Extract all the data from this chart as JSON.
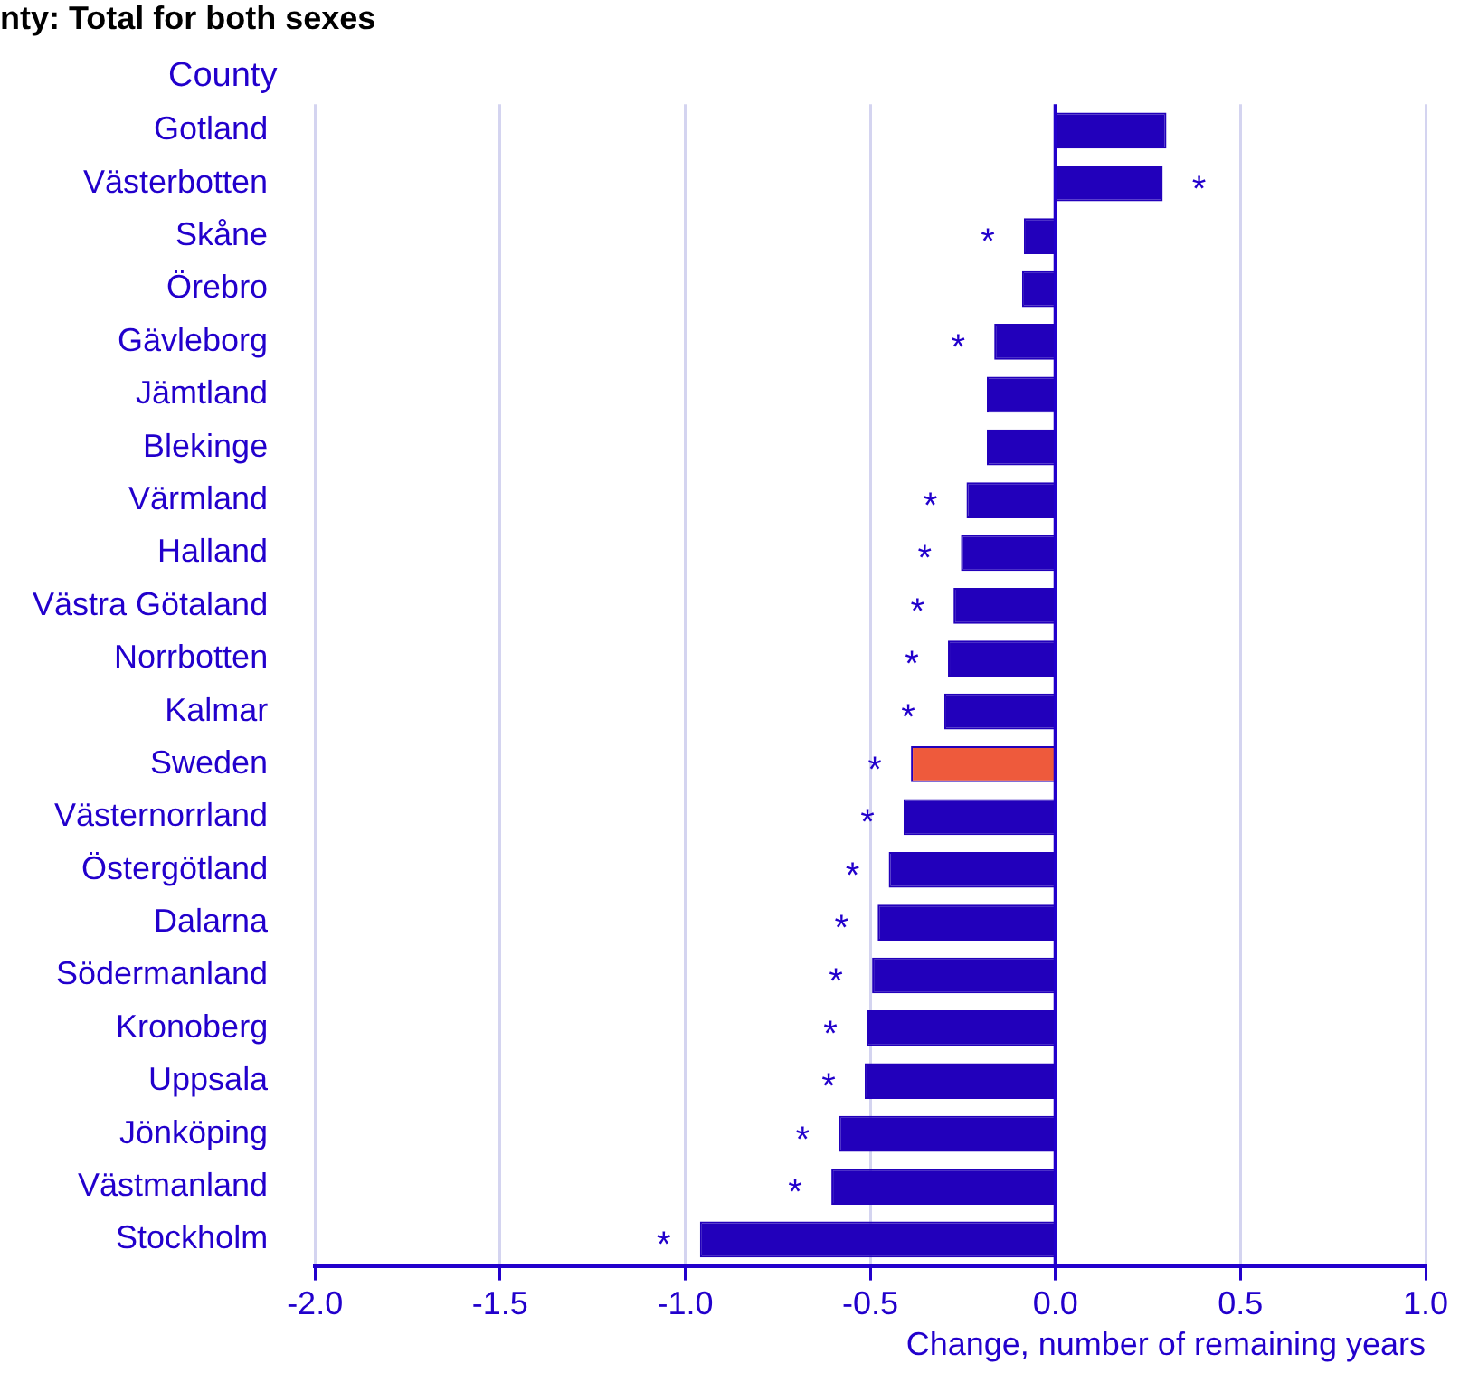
{
  "chart_data": {
    "type": "bar",
    "orientation": "horizontal",
    "title": "nty: Total for both sexes",
    "ylabel": "County",
    "xlabel": "Change, number of remaining years",
    "categories": [
      "Gotland",
      "Västerbotten",
      "Skåne",
      "Örebro",
      "Gävleborg",
      "Jämtland",
      "Blekinge",
      "Värmland",
      "Halland",
      "Västra Götaland",
      "Norrbotten",
      "Kalmar",
      "Sweden",
      "Västernorrland",
      "Östergötland",
      "Dalarna",
      "Södermanland",
      "Kronoberg",
      "Uppsala",
      "Jönköping",
      "Västmanland",
      "Stockholm"
    ],
    "values": [
      0.3,
      0.29,
      -0.085,
      -0.09,
      -0.165,
      -0.185,
      -0.185,
      -0.24,
      -0.255,
      -0.275,
      -0.29,
      -0.3,
      -0.39,
      -0.41,
      -0.45,
      -0.48,
      -0.495,
      -0.51,
      -0.515,
      -0.585,
      -0.605,
      -0.96
    ],
    "colors": [
      "#2200bb",
      "#2200bb",
      "#2200bb",
      "#2200bb",
      "#2200bb",
      "#2200bb",
      "#2200bb",
      "#2200bb",
      "#2200bb",
      "#2200bb",
      "#2200bb",
      "#2200bb",
      "#ee5a3c",
      "#2200bb",
      "#2200bb",
      "#2200bb",
      "#2200bb",
      "#2200bb",
      "#2200bb",
      "#2200bb",
      "#2200bb",
      "#2200bb"
    ],
    "xlim": [
      -2,
      1
    ],
    "xticks": [
      {
        "value": -2,
        "label": "-2.0"
      },
      {
        "value": -1.5,
        "label": "-1.5"
      },
      {
        "value": -1,
        "label": "-1.0"
      },
      {
        "value": -0.5,
        "label": "-0.5"
      },
      {
        "value": 0,
        "label": "0.0"
      },
      {
        "value": 0.5,
        "label": "0.5"
      },
      {
        "value": 1,
        "label": "1.0"
      }
    ],
    "grid": "x",
    "legend": false,
    "ref_lines": [
      {
        "axis": "x",
        "value": 0,
        "color": "#2200cc"
      }
    ],
    "annotations": [
      {
        "text": "*",
        "x": 0.29,
        "y": "Västerbotten"
      },
      {
        "text": "*",
        "x": -0.085,
        "y": "Skåne"
      },
      {
        "text": "*",
        "x": -0.165,
        "y": "Gävleborg"
      },
      {
        "text": "*",
        "x": -0.24,
        "y": "Värmland"
      },
      {
        "text": "*",
        "x": -0.255,
        "y": "Halland"
      },
      {
        "text": "*",
        "x": -0.275,
        "y": "Västra Götaland"
      },
      {
        "text": "*",
        "x": -0.29,
        "y": "Norrbotten"
      },
      {
        "text": "*",
        "x": -0.3,
        "y": "Kalmar"
      },
      {
        "text": "*",
        "x": -0.39,
        "y": "Sweden"
      },
      {
        "text": "*",
        "x": -0.41,
        "y": "Västernorrland"
      },
      {
        "text": "*",
        "x": -0.45,
        "y": "Östergötland"
      },
      {
        "text": "*",
        "x": -0.48,
        "y": "Dalarna"
      },
      {
        "text": "*",
        "x": -0.495,
        "y": "Södermanland"
      },
      {
        "text": "*",
        "x": -0.51,
        "y": "Kronoberg"
      },
      {
        "text": "*",
        "x": -0.515,
        "y": "Uppsala"
      },
      {
        "text": "*",
        "x": -0.585,
        "y": "Jönköping"
      },
      {
        "text": "*",
        "x": -0.605,
        "y": "Västmanland"
      },
      {
        "text": "*",
        "x": -0.96,
        "y": "Stockholm"
      }
    ]
  }
}
